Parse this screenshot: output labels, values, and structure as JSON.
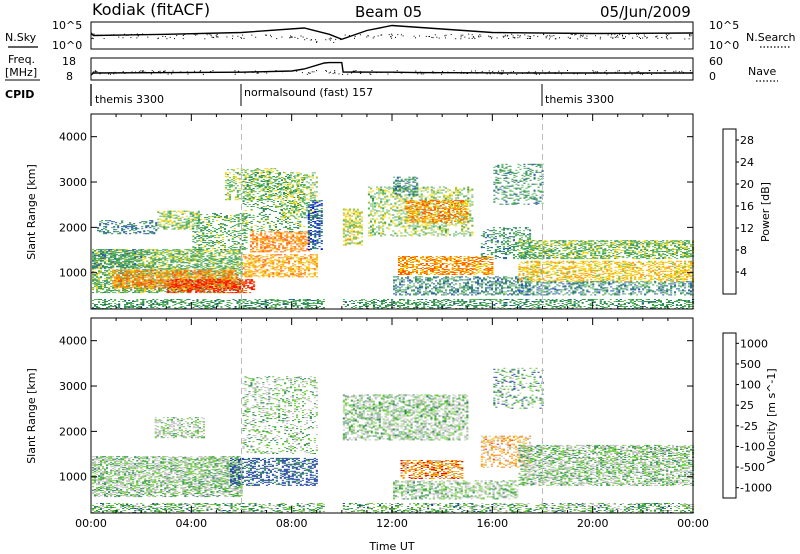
{
  "header": {
    "station": "Kodiak (fitACF)",
    "beam": "Beam 05",
    "date": "05/Jun/2009"
  },
  "left_labels": {
    "nsky": "N.Sky",
    "freq": "Freq.",
    "freq_unit": "[MHz]",
    "cpid": "CPID"
  },
  "right_labels": {
    "nsearch": "N.Search",
    "nave": "Nave"
  },
  "cpid_segments": [
    {
      "label": "themis 3300",
      "start_hour": 0
    },
    {
      "label": "normalsound (fast) 157",
      "start_hour": 6
    },
    {
      "label": "themis 3300",
      "start_hour": 18
    }
  ],
  "chart_data": [
    {
      "type": "line",
      "panel": "noise",
      "left_ticks": [
        "10^5",
        "10^0"
      ],
      "right_ticks": [
        "10^5",
        "10^0"
      ],
      "xlim": [
        0,
        24
      ],
      "series": [
        {
          "name": "N.Sky",
          "x": [
            0,
            0.1,
            3,
            6,
            8.5,
            9.5,
            10,
            11,
            12,
            16,
            20,
            24
          ],
          "y": [
            0.6,
            0.5,
            0.55,
            0.62,
            0.8,
            0.55,
            0.35,
            0.7,
            0.9,
            0.62,
            0.58,
            0.6
          ]
        }
      ]
    },
    {
      "type": "line",
      "panel": "frequency",
      "left_ticks": [
        "18",
        "8"
      ],
      "right_ticks": [
        "60",
        "0"
      ],
      "xlim": [
        0,
        24
      ],
      "series": [
        {
          "name": "Freq.",
          "x": [
            0,
            0.1,
            6,
            8,
            8.5,
            9.3,
            9.5,
            10,
            10.05,
            12,
            13,
            18,
            24
          ],
          "y": [
            10,
            11,
            11.4,
            12,
            13,
            16,
            16.2,
            16.2,
            11.5,
            11.4,
            11.2,
            11.0,
            11.0
          ]
        }
      ]
    },
    {
      "type": "heatmap",
      "panel": "power",
      "xlabel": "",
      "ylabel": "Slant Range [km]",
      "xlim": [
        0,
        24
      ],
      "ylim": [
        200,
        4500
      ],
      "y_ticks": [
        "1000",
        "2000",
        "3000",
        "4000"
      ],
      "colorbar_label": "Power [dB]",
      "colorbar_ticks": [
        "4",
        "8",
        "12",
        "16",
        "20",
        "24",
        "28"
      ],
      "colorbar_range": [
        0,
        30
      ],
      "colors": [
        "#0000ff",
        "#1c4fa8",
        "#2e8b57",
        "#5cb85c",
        "#f2d400",
        "#ff9900",
        "#ff5500",
        "#ff0000"
      ],
      "regions": [
        {
          "x0": 0.0,
          "x1": 6.0,
          "r0": 550,
          "r1": 1500,
          "level": 13,
          "density": 0.6
        },
        {
          "x0": 0.8,
          "x1": 5.8,
          "r0": 650,
          "r1": 1050,
          "level": 22,
          "density": 0.55
        },
        {
          "x0": 3.0,
          "x1": 6.5,
          "r0": 550,
          "r1": 850,
          "level": 26,
          "density": 0.6
        },
        {
          "x0": 0.0,
          "x1": 2.0,
          "r0": 1100,
          "r1": 1500,
          "level": 10,
          "density": 0.5
        },
        {
          "x0": 0.2,
          "x1": 2.6,
          "r0": 1850,
          "r1": 2150,
          "level": 8,
          "density": 0.35
        },
        {
          "x0": 2.6,
          "x1": 4.3,
          "r0": 1950,
          "r1": 2350,
          "level": 14,
          "density": 0.45
        },
        {
          "x0": 4.0,
          "x1": 6.2,
          "r0": 1500,
          "r1": 2300,
          "level": 12,
          "density": 0.35
        },
        {
          "x0": 5.3,
          "x1": 7.5,
          "r0": 2600,
          "r1": 3300,
          "level": 14,
          "density": 0.35
        },
        {
          "x0": 6.0,
          "x1": 9.0,
          "r0": 900,
          "r1": 1400,
          "level": 20,
          "density": 0.5
        },
        {
          "x0": 6.3,
          "x1": 8.7,
          "r0": 1450,
          "r1": 1900,
          "level": 22,
          "density": 0.55
        },
        {
          "x0": 6.0,
          "x1": 8.5,
          "r0": 1900,
          "r1": 3200,
          "level": 12,
          "density": 0.25
        },
        {
          "x0": 7.5,
          "x1": 9.0,
          "r0": 2200,
          "r1": 3200,
          "level": 14,
          "density": 0.3
        },
        {
          "x0": 8.6,
          "x1": 9.2,
          "r0": 1500,
          "r1": 2600,
          "level": 6,
          "density": 0.55
        },
        {
          "x0": 10.0,
          "x1": 10.8,
          "r0": 1600,
          "r1": 2400,
          "level": 16,
          "density": 0.45
        },
        {
          "x0": 11.0,
          "x1": 15.2,
          "r0": 1800,
          "r1": 2900,
          "level": 14,
          "density": 0.35
        },
        {
          "x0": 12.5,
          "x1": 15.0,
          "r0": 2100,
          "r1": 2600,
          "level": 21,
          "density": 0.55
        },
        {
          "x0": 12.0,
          "x1": 13.0,
          "r0": 2700,
          "r1": 3100,
          "level": 9,
          "density": 0.4
        },
        {
          "x0": 12.2,
          "x1": 16.0,
          "r0": 950,
          "r1": 1350,
          "level": 21,
          "density": 0.55
        },
        {
          "x0": 12.0,
          "x1": 17.5,
          "r0": 500,
          "r1": 900,
          "level": 9,
          "density": 0.45
        },
        {
          "x0": 15.5,
          "x1": 17.5,
          "r0": 1300,
          "r1": 2000,
          "level": 10,
          "density": 0.35
        },
        {
          "x0": 16.0,
          "x1": 18.0,
          "r0": 2500,
          "r1": 3400,
          "level": 10,
          "density": 0.3
        },
        {
          "x0": 17.0,
          "x1": 24.0,
          "r0": 1300,
          "r1": 1700,
          "level": 13,
          "density": 0.55
        },
        {
          "x0": 17.0,
          "x1": 24.0,
          "r0": 800,
          "r1": 1250,
          "level": 18,
          "density": 0.5
        },
        {
          "x0": 17.0,
          "x1": 24.0,
          "r0": 500,
          "r1": 800,
          "level": 9,
          "density": 0.4
        },
        {
          "x0": 0.0,
          "x1": 24.0,
          "r0": 200,
          "r1": 420,
          "level": 11,
          "density": 0.45
        }
      ]
    },
    {
      "type": "heatmap",
      "panel": "velocity",
      "xlabel": "Time UT",
      "ylabel": "Slant Range [km]",
      "xlim": [
        0,
        24
      ],
      "ylim": [
        200,
        4500
      ],
      "y_ticks": [
        "1000",
        "2000",
        "3000",
        "4000"
      ],
      "x_ticks": [
        "00:00",
        "04:00",
        "08:00",
        "12:00",
        "16:00",
        "20:00",
        "00:00"
      ],
      "colorbar_label": "Velocity [m s^-1]",
      "colorbar_ticks": [
        "1000",
        "500",
        "100",
        "25",
        "-25",
        "-100",
        "-500",
        "-1000"
      ],
      "colors": [
        "#ff0000",
        "#ff7f00",
        "#ffb000",
        "#c0c0c0",
        "#c0c0c0",
        "#66cc33",
        "#2e8b57",
        "#1f3ea8"
      ],
      "regions": [
        {
          "x0": 0.0,
          "x1": 6.0,
          "r0": 550,
          "r1": 1450,
          "level": 12,
          "density": 0.6
        },
        {
          "x0": 2.5,
          "x1": 4.5,
          "r0": 1850,
          "r1": 2300,
          "level": 11,
          "density": 0.4
        },
        {
          "x0": 5.5,
          "x1": 9.0,
          "r0": 800,
          "r1": 1400,
          "level": 18,
          "density": 0.45
        },
        {
          "x0": 6.0,
          "x1": 9.0,
          "r0": 1500,
          "r1": 3200,
          "level": 12,
          "density": 0.25
        },
        {
          "x0": 10.0,
          "x1": 15.0,
          "r0": 1800,
          "r1": 2800,
          "level": 12,
          "density": 0.45
        },
        {
          "x0": 12.3,
          "x1": 14.8,
          "r0": 950,
          "r1": 1350,
          "level": 4,
          "density": 0.55
        },
        {
          "x0": 12.0,
          "x1": 17.0,
          "r0": 500,
          "r1": 900,
          "level": 12,
          "density": 0.45
        },
        {
          "x0": 15.5,
          "x1": 17.5,
          "r0": 1200,
          "r1": 1900,
          "level": 5,
          "density": 0.35
        },
        {
          "x0": 17.0,
          "x1": 24.0,
          "r0": 800,
          "r1": 1700,
          "level": 12,
          "density": 0.55
        },
        {
          "x0": 16.0,
          "x1": 18.0,
          "r0": 2500,
          "r1": 3400,
          "level": 14,
          "density": 0.25
        },
        {
          "x0": 0.0,
          "x1": 24.0,
          "r0": 200,
          "r1": 420,
          "level": 13,
          "density": 0.45
        }
      ]
    }
  ]
}
